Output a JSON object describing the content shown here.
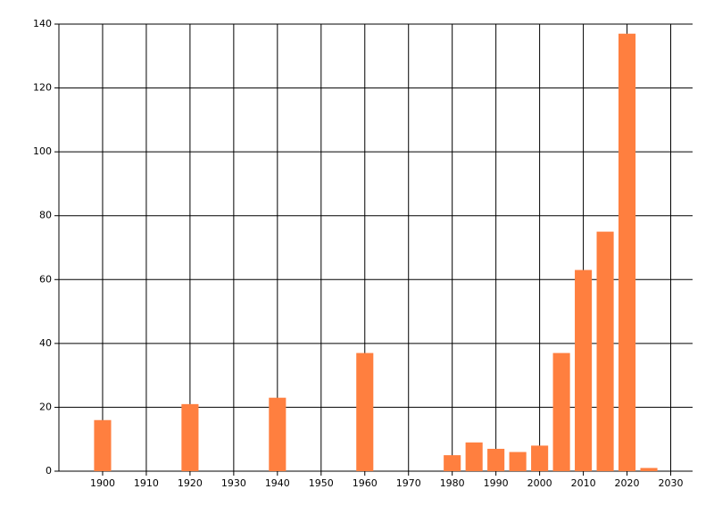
{
  "chart_data": {
    "type": "bar",
    "x": [
      1900,
      1920,
      1940,
      1960,
      1980,
      1985,
      1990,
      1995,
      2000,
      2005,
      2010,
      2015,
      2020,
      2025
    ],
    "values": [
      16,
      21,
      23,
      37,
      5,
      9,
      7,
      6,
      8,
      37,
      63,
      75,
      137,
      1
    ],
    "color": "#ff7f3f",
    "xlim": [
      1890,
      2035
    ],
    "xticks": [
      1900,
      1910,
      1920,
      1930,
      1940,
      1950,
      1960,
      1970,
      1980,
      1990,
      2000,
      2010,
      2020,
      2030
    ],
    "ylim": [
      0,
      140
    ],
    "yticks": [
      0,
      20,
      40,
      60,
      80,
      100,
      120,
      140
    ],
    "grid": true
  }
}
